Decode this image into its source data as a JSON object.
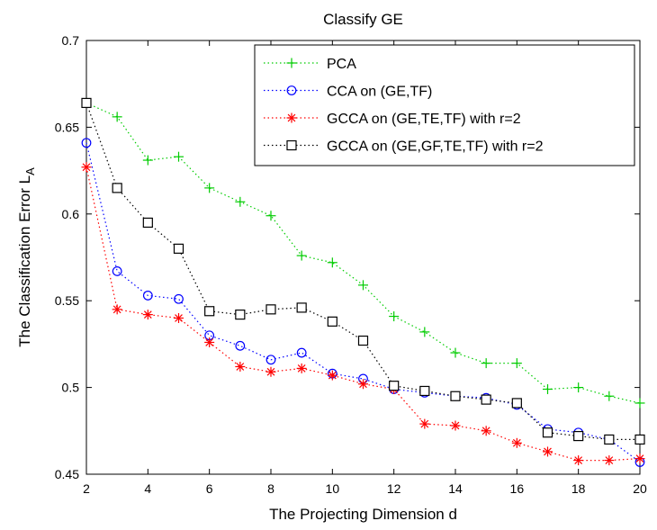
{
  "chart_data": {
    "type": "line",
    "title": "Classify GE",
    "xlabel": "The Projecting Dimension d",
    "ylabel": "The Classification Error L",
    "ylabel_subscript": "A",
    "xlim": [
      2,
      20
    ],
    "ylim": [
      0.45,
      0.7
    ],
    "xticks": [
      2,
      4,
      6,
      8,
      10,
      12,
      14,
      16,
      18,
      20
    ],
    "yticks": [
      0.45,
      0.5,
      0.55,
      0.6,
      0.65,
      0.7
    ],
    "ytick_labels": [
      "0.45",
      "0.5",
      "0.55",
      "0.6",
      "0.65",
      "0.7"
    ],
    "grid": false,
    "legend_position": "top-right",
    "x": [
      2,
      3,
      4,
      5,
      6,
      7,
      8,
      9,
      10,
      11,
      12,
      13,
      14,
      15,
      16,
      17,
      18,
      19,
      20
    ],
    "series": [
      {
        "name": "PCA",
        "color": "#00cc00",
        "marker": "plus",
        "values": [
          0.664,
          0.656,
          0.631,
          0.633,
          0.615,
          0.607,
          0.599,
          0.576,
          0.572,
          0.559,
          0.541,
          0.532,
          0.52,
          0.514,
          0.514,
          0.499,
          0.5,
          0.495,
          0.491
        ]
      },
      {
        "name": "CCA on (GE,TF)",
        "color": "#0000ff",
        "marker": "circle",
        "values": [
          0.641,
          0.567,
          0.553,
          0.551,
          0.53,
          0.524,
          0.516,
          0.52,
          0.508,
          0.505,
          0.499,
          0.497,
          0.495,
          0.494,
          0.49,
          0.476,
          0.474,
          0.47,
          0.457
        ]
      },
      {
        "name": "GCCA on (GE,TE,TF) with r=2",
        "color": "#ff0000",
        "marker": "star",
        "values": [
          0.627,
          0.545,
          0.542,
          0.54,
          0.526,
          0.512,
          0.509,
          0.511,
          0.507,
          0.502,
          0.499,
          0.479,
          0.478,
          0.475,
          0.468,
          0.463,
          0.458,
          0.458,
          0.459
        ]
      },
      {
        "name": "GCCA on (GE,GF,TE,TF) with r=2",
        "color": "#000000",
        "marker": "square",
        "values": [
          0.664,
          0.615,
          0.595,
          0.58,
          0.544,
          0.542,
          0.545,
          0.546,
          0.538,
          0.527,
          0.501,
          0.498,
          0.495,
          0.493,
          0.491,
          0.474,
          0.472,
          0.47,
          0.47
        ]
      }
    ]
  }
}
